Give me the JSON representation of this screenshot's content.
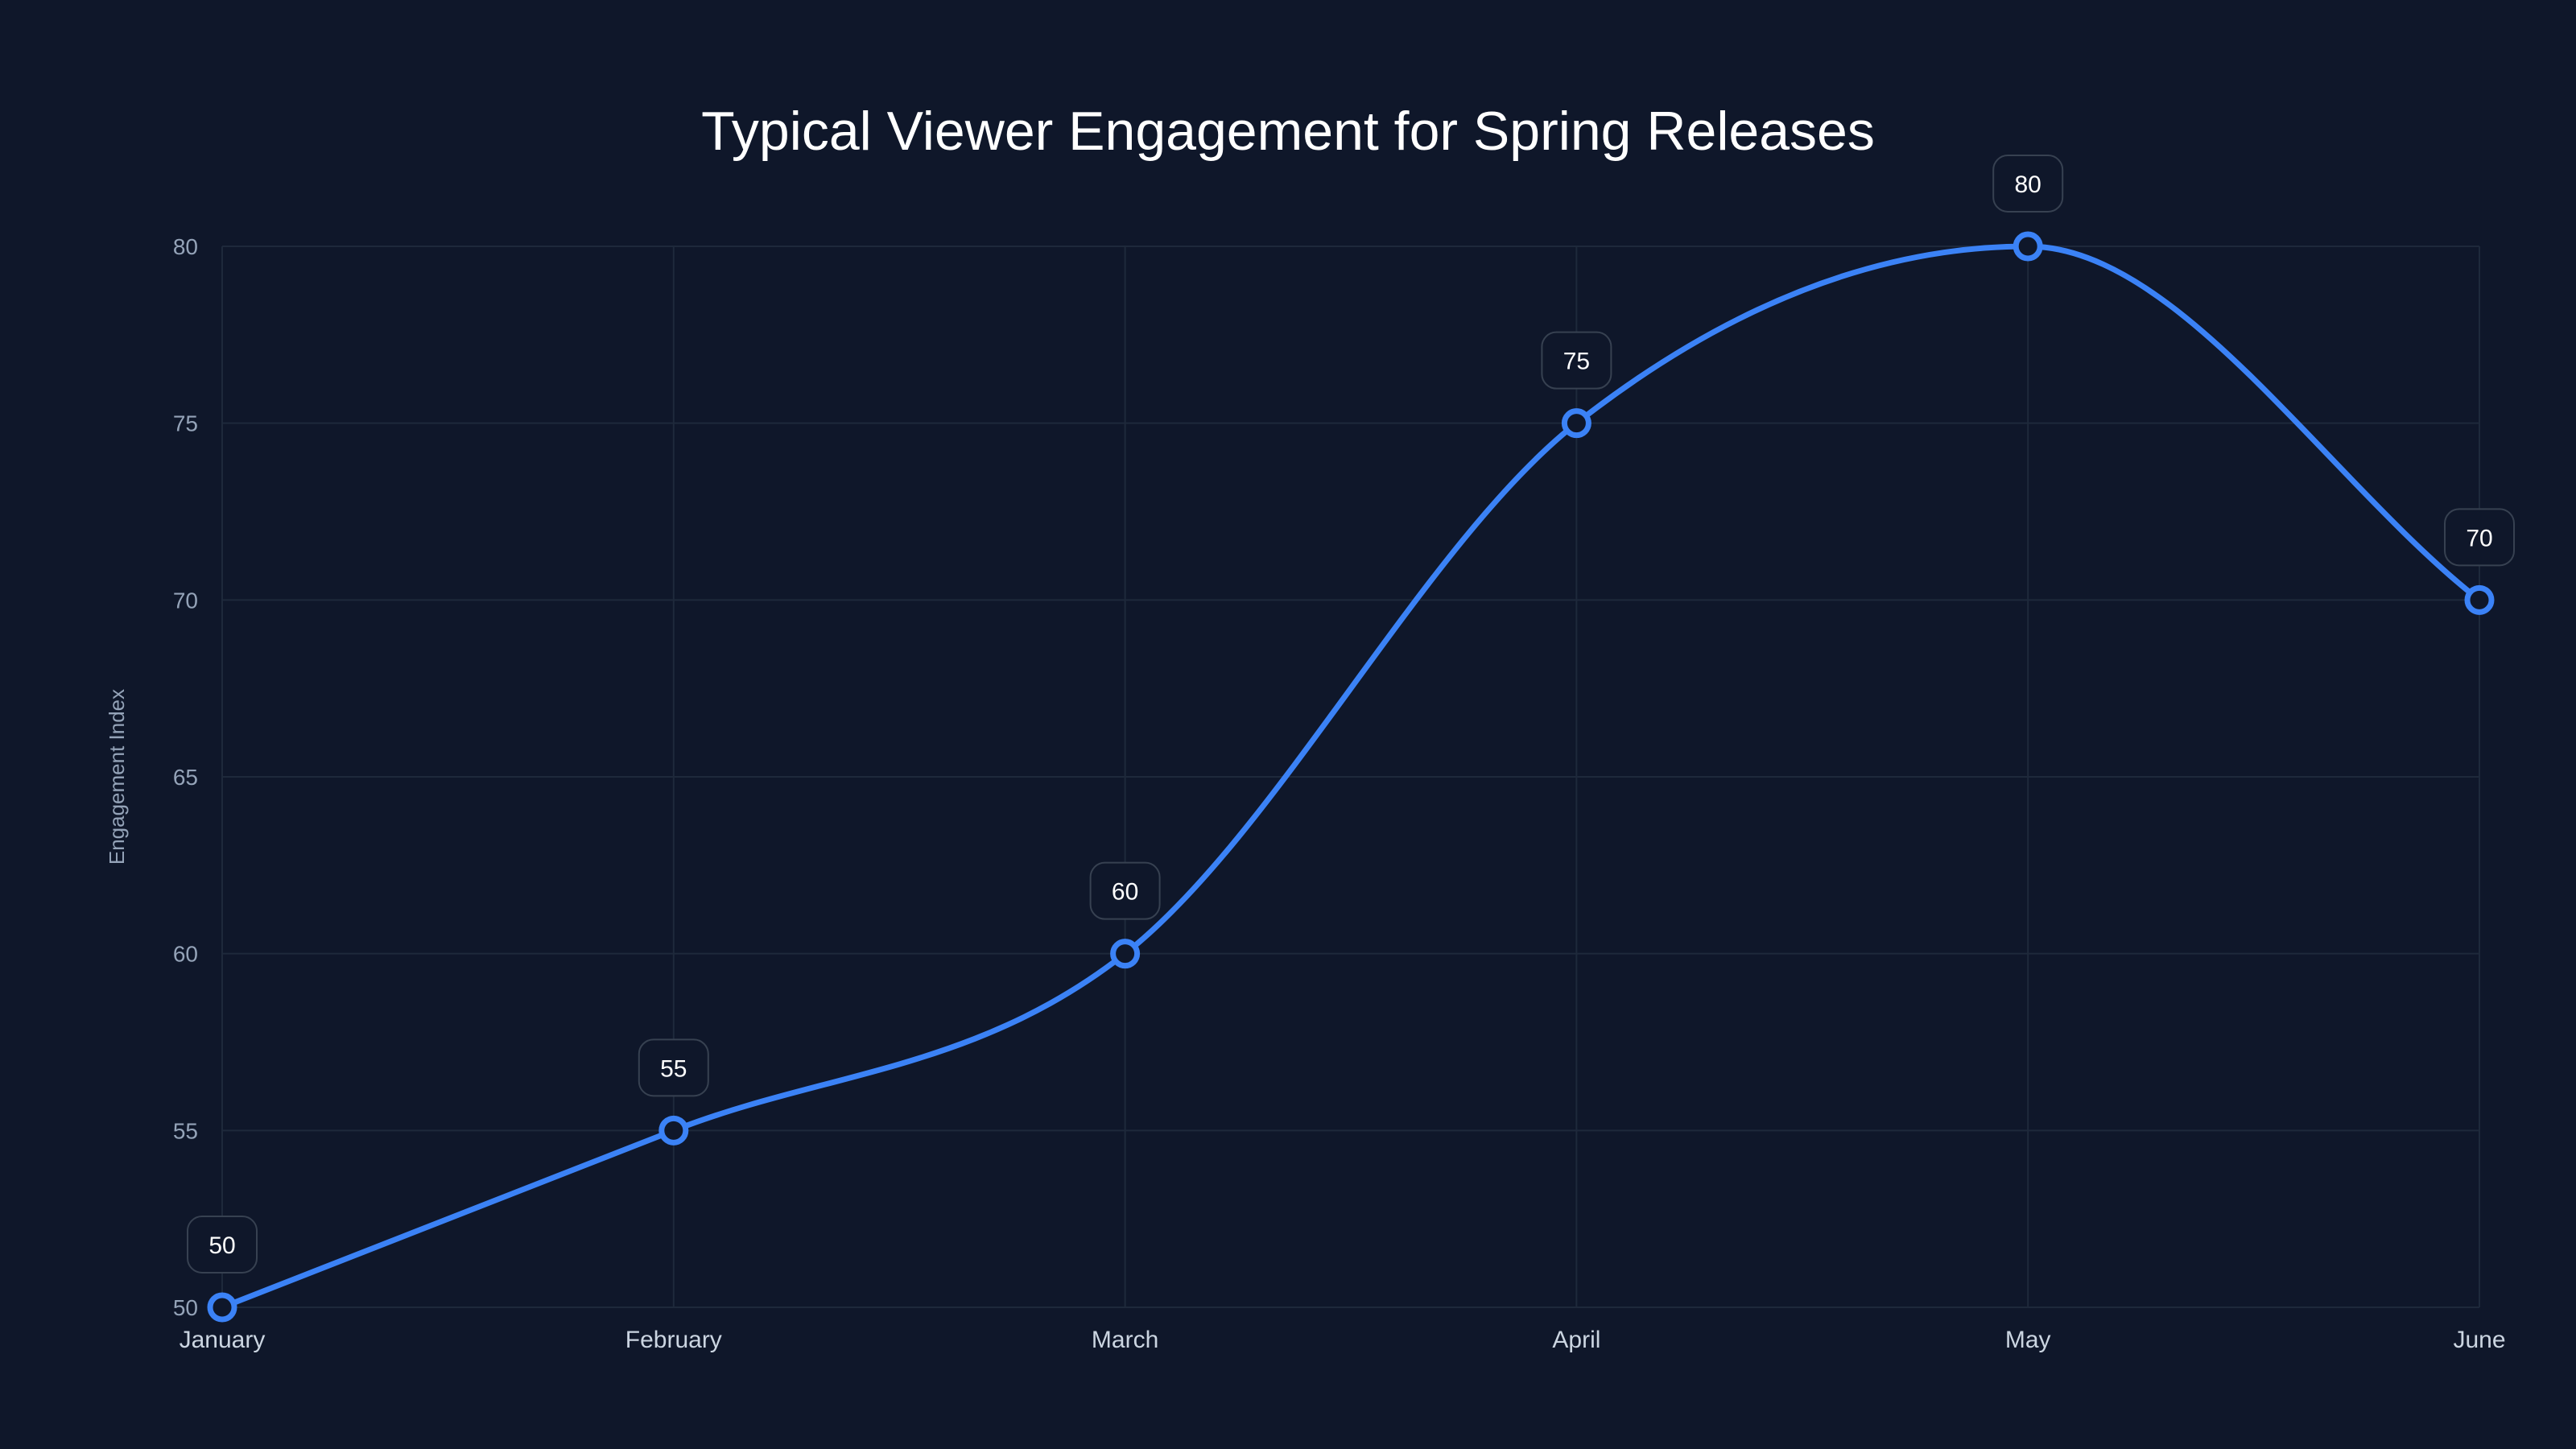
{
  "chart_data": {
    "type": "line",
    "title": "Typical Viewer Engagement for Spring Releases",
    "xlabel": "",
    "ylabel": "Engagement Index",
    "categories": [
      "January",
      "February",
      "March",
      "April",
      "May",
      "June"
    ],
    "series": [
      {
        "name": "Engagement Index",
        "values": [
          50,
          55,
          60,
          75,
          80,
          70
        ],
        "color": "#3b82f6"
      }
    ],
    "ylim": [
      50,
      80
    ],
    "yticks": [
      50,
      55,
      60,
      65,
      70,
      75,
      80
    ],
    "grid": true,
    "legend": "none",
    "data_labels": true
  }
}
